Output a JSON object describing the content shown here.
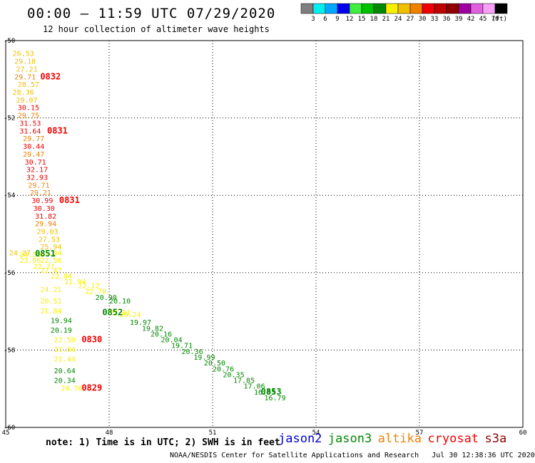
{
  "header": {
    "title": "00:00 – 11:59 UTC 07/29/2020",
    "subtitle": "12 hour collection of altimeter wave heights"
  },
  "legend": {
    "unit": "(ft)",
    "bins": [
      {
        "label": "3",
        "color": "#7f7f7f"
      },
      {
        "label": "6",
        "color": "#00f0f0"
      },
      {
        "label": "9",
        "color": "#00a8ff"
      },
      {
        "label": "12",
        "color": "#0000f0"
      },
      {
        "label": "15",
        "color": "#40f040"
      },
      {
        "label": "18",
        "color": "#00c000"
      },
      {
        "label": "21",
        "color": "#008800"
      },
      {
        "label": "24",
        "color": "#f8f000"
      },
      {
        "label": "27",
        "color": "#f0c000"
      },
      {
        "label": "30",
        "color": "#f08000"
      },
      {
        "label": "33",
        "color": "#f00000"
      },
      {
        "label": "36",
        "color": "#c00000"
      },
      {
        "label": "39",
        "color": "#900000"
      },
      {
        "label": "42",
        "color": "#a000a0"
      },
      {
        "label": "45",
        "color": "#e060e0"
      },
      {
        "label": "70",
        "color": "#f8a0f8"
      },
      {
        "label": "",
        "color": "#000000"
      }
    ]
  },
  "axes": {
    "lon_ticks": [
      45,
      48,
      51,
      54,
      57,
      60
    ],
    "lat_ticks": [
      -50,
      -52,
      -54,
      -56,
      -58,
      -60
    ]
  },
  "observations": [
    {
      "lon": 45.2,
      "lat": -50.4,
      "text": "26.53",
      "color": "#f0c000"
    },
    {
      "lon": 45.25,
      "lat": -50.6,
      "text": "29.18",
      "color": "#f0c000"
    },
    {
      "lon": 45.3,
      "lat": -50.8,
      "text": "27.21",
      "color": "#f0c000"
    },
    {
      "lon": 45.25,
      "lat": -51.0,
      "text": "29.71",
      "color": "#f08000"
    },
    {
      "lon": 45.35,
      "lat": -51.2,
      "text": "28.57",
      "color": "#f0c000"
    },
    {
      "lon": 45.2,
      "lat": -51.4,
      "text": "28.36",
      "color": "#f0c000"
    },
    {
      "lon": 45.3,
      "lat": -51.6,
      "text": "29.07",
      "color": "#f0c000"
    },
    {
      "lon": 45.35,
      "lat": -51.8,
      "text": "30.15",
      "color": "#f00000"
    },
    {
      "lon": 45.35,
      "lat": -52.0,
      "text": "29.75",
      "color": "#f08000"
    },
    {
      "lon": 45.4,
      "lat": -52.2,
      "text": "31.53",
      "color": "#f00000"
    },
    {
      "lon": 45.4,
      "lat": -52.4,
      "text": "31.64",
      "color": "#f00000"
    },
    {
      "lon": 45.5,
      "lat": -52.6,
      "text": "29.77",
      "color": "#f08000"
    },
    {
      "lon": 45.5,
      "lat": -52.8,
      "text": "30.44",
      "color": "#f00000"
    },
    {
      "lon": 45.5,
      "lat": -53.0,
      "text": "29.47",
      "color": "#f08000"
    },
    {
      "lon": 45.55,
      "lat": -53.2,
      "text": "30.71",
      "color": "#f00000"
    },
    {
      "lon": 45.6,
      "lat": -53.4,
      "text": "32.17",
      "color": "#f00000"
    },
    {
      "lon": 45.6,
      "lat": -53.6,
      "text": "32.93",
      "color": "#f00000"
    },
    {
      "lon": 45.65,
      "lat": -53.8,
      "text": "29.71",
      "color": "#f08000"
    },
    {
      "lon": 45.7,
      "lat": -54.0,
      "text": "29.21",
      "color": "#f08000"
    },
    {
      "lon": 45.75,
      "lat": -54.2,
      "text": "30.99",
      "color": "#f00000"
    },
    {
      "lon": 45.8,
      "lat": -54.4,
      "text": "30.30",
      "color": "#f00000"
    },
    {
      "lon": 45.85,
      "lat": -54.6,
      "text": "31.82",
      "color": "#f00000"
    },
    {
      "lon": 45.85,
      "lat": -54.8,
      "text": "29.94",
      "color": "#f08000"
    },
    {
      "lon": 45.9,
      "lat": -55.0,
      "text": "29.03",
      "color": "#f0c000"
    },
    {
      "lon": 45.95,
      "lat": -55.2,
      "text": "27.53",
      "color": "#f0c000"
    },
    {
      "lon": 46.0,
      "lat": -55.4,
      "text": "25.94",
      "color": "#f0c000"
    },
    {
      "lon": 45.1,
      "lat": -55.55,
      "text": "24.27",
      "color": "#f0c000"
    },
    {
      "lon": 45.4,
      "lat": -55.6,
      "text": "24.50",
      "color": "#f8f000"
    },
    {
      "lon": 46.0,
      "lat": -55.55,
      "text": "25.94",
      "color": "#f8f000"
    },
    {
      "lon": 45.4,
      "lat": -55.75,
      "text": "23.66",
      "color": "#f8f000"
    },
    {
      "lon": 46.0,
      "lat": -55.75,
      "text": "22.56",
      "color": "#f8f000"
    },
    {
      "lon": 45.8,
      "lat": -55.9,
      "text": "22.71",
      "color": "#f8f000"
    },
    {
      "lon": 46.0,
      "lat": -56.0,
      "text": "22.47",
      "color": "#f8f000"
    },
    {
      "lon": 46.3,
      "lat": -56.15,
      "text": "22.84",
      "color": "#f8f000"
    },
    {
      "lon": 46.7,
      "lat": -56.3,
      "text": "21.94",
      "color": "#f8f000"
    },
    {
      "lon": 47.1,
      "lat": -56.4,
      "text": "22.12",
      "color": "#f8f000"
    },
    {
      "lon": 46.0,
      "lat": -56.5,
      "text": "24.21",
      "color": "#f8f000"
    },
    {
      "lon": 47.3,
      "lat": -56.55,
      "text": "22.78",
      "color": "#f8f000"
    },
    {
      "lon": 47.6,
      "lat": -56.7,
      "text": "20.90",
      "color": "#008800"
    },
    {
      "lon": 48.0,
      "lat": -56.8,
      "text": "20.10",
      "color": "#008800"
    },
    {
      "lon": 46.0,
      "lat": -56.8,
      "text": "20.51",
      "color": "#f8f000"
    },
    {
      "lon": 46.0,
      "lat": -57.05,
      "text": "21.84",
      "color": "#f8f000"
    },
    {
      "lon": 48.0,
      "lat": -57.1,
      "text": "22.31",
      "color": "#f8f000"
    },
    {
      "lon": 48.3,
      "lat": -57.15,
      "text": "20.24",
      "color": "#f8f000"
    },
    {
      "lon": 46.3,
      "lat": -57.3,
      "text": "19.94",
      "color": "#008800"
    },
    {
      "lon": 48.6,
      "lat": -57.35,
      "text": "19.97",
      "color": "#008800"
    },
    {
      "lon": 48.95,
      "lat": -57.5,
      "text": "19.82",
      "color": "#008800"
    },
    {
      "lon": 46.3,
      "lat": -57.55,
      "text": "20.19",
      "color": "#008800"
    },
    {
      "lon": 49.2,
      "lat": -57.65,
      "text": "20.16",
      "color": "#008800"
    },
    {
      "lon": 49.5,
      "lat": -57.8,
      "text": "20.04",
      "color": "#008800"
    },
    {
      "lon": 46.4,
      "lat": -57.8,
      "text": "22.59",
      "color": "#f8f000"
    },
    {
      "lon": 49.8,
      "lat": -57.95,
      "text": "19.71",
      "color": "#008800"
    },
    {
      "lon": 46.4,
      "lat": -58.05,
      "text": "21.84",
      "color": "#f8f000"
    },
    {
      "lon": 50.1,
      "lat": -58.1,
      "text": "20.36",
      "color": "#008800"
    },
    {
      "lon": 50.45,
      "lat": -58.25,
      "text": "19.99",
      "color": "#008800"
    },
    {
      "lon": 46.4,
      "lat": -58.3,
      "text": "21.44",
      "color": "#f8f000"
    },
    {
      "lon": 50.75,
      "lat": -58.4,
      "text": "20.50",
      "color": "#008800"
    },
    {
      "lon": 51.0,
      "lat": -58.55,
      "text": "20.76",
      "color": "#008800"
    },
    {
      "lon": 46.4,
      "lat": -58.6,
      "text": "20.64",
      "color": "#008800"
    },
    {
      "lon": 51.3,
      "lat": -58.7,
      "text": "20.35",
      "color": "#008800"
    },
    {
      "lon": 51.6,
      "lat": -58.85,
      "text": "17.85",
      "color": "#008800"
    },
    {
      "lon": 46.4,
      "lat": -58.85,
      "text": "20.34",
      "color": "#008800"
    },
    {
      "lon": 51.9,
      "lat": -59.0,
      "text": "17.06",
      "color": "#008800"
    },
    {
      "lon": 52.2,
      "lat": -59.15,
      "text": "16.93",
      "color": "#008800"
    },
    {
      "lon": 46.6,
      "lat": -59.05,
      "text": "24.76",
      "color": "#f8f000"
    },
    {
      "lon": 52.5,
      "lat": -59.3,
      "text": "16.79",
      "color": "#008800"
    }
  ],
  "time_labels": [
    {
      "lon": 46.0,
      "lat": -51.0,
      "text": "0832",
      "color": "#f00000"
    },
    {
      "lon": 46.2,
      "lat": -52.4,
      "text": "0831",
      "color": "#f00000"
    },
    {
      "lon": 46.55,
      "lat": -54.2,
      "text": "0831",
      "color": "#f00000"
    },
    {
      "lon": 45.85,
      "lat": -55.58,
      "text": "0851",
      "color": "#008800"
    },
    {
      "lon": 47.8,
      "lat": -57.1,
      "text": "0852",
      "color": "#008800"
    },
    {
      "lon": 47.2,
      "lat": -57.8,
      "text": "0830",
      "color": "#f00000"
    },
    {
      "lon": 47.2,
      "lat": -59.05,
      "text": "0829",
      "color": "#f00000"
    },
    {
      "lon": 52.4,
      "lat": -59.15,
      "text": "0853",
      "color": "#008800"
    }
  ],
  "footer": {
    "note": "note: 1) Time is in UTC; 2) SWH is in feet",
    "credit": "NOAA/NESDIS Center for Satellite Applications and Research   Jul 30 12:38:36 UTC 2020",
    "satellites": [
      {
        "name": "jason2",
        "color": "#0000d0"
      },
      {
        "name": "jason3",
        "color": "#008800"
      },
      {
        "name": "altika",
        "color": "#f08000"
      },
      {
        "name": "cryosat",
        "color": "#f00000"
      },
      {
        "name": "s3a",
        "color": "#900000"
      }
    ]
  }
}
